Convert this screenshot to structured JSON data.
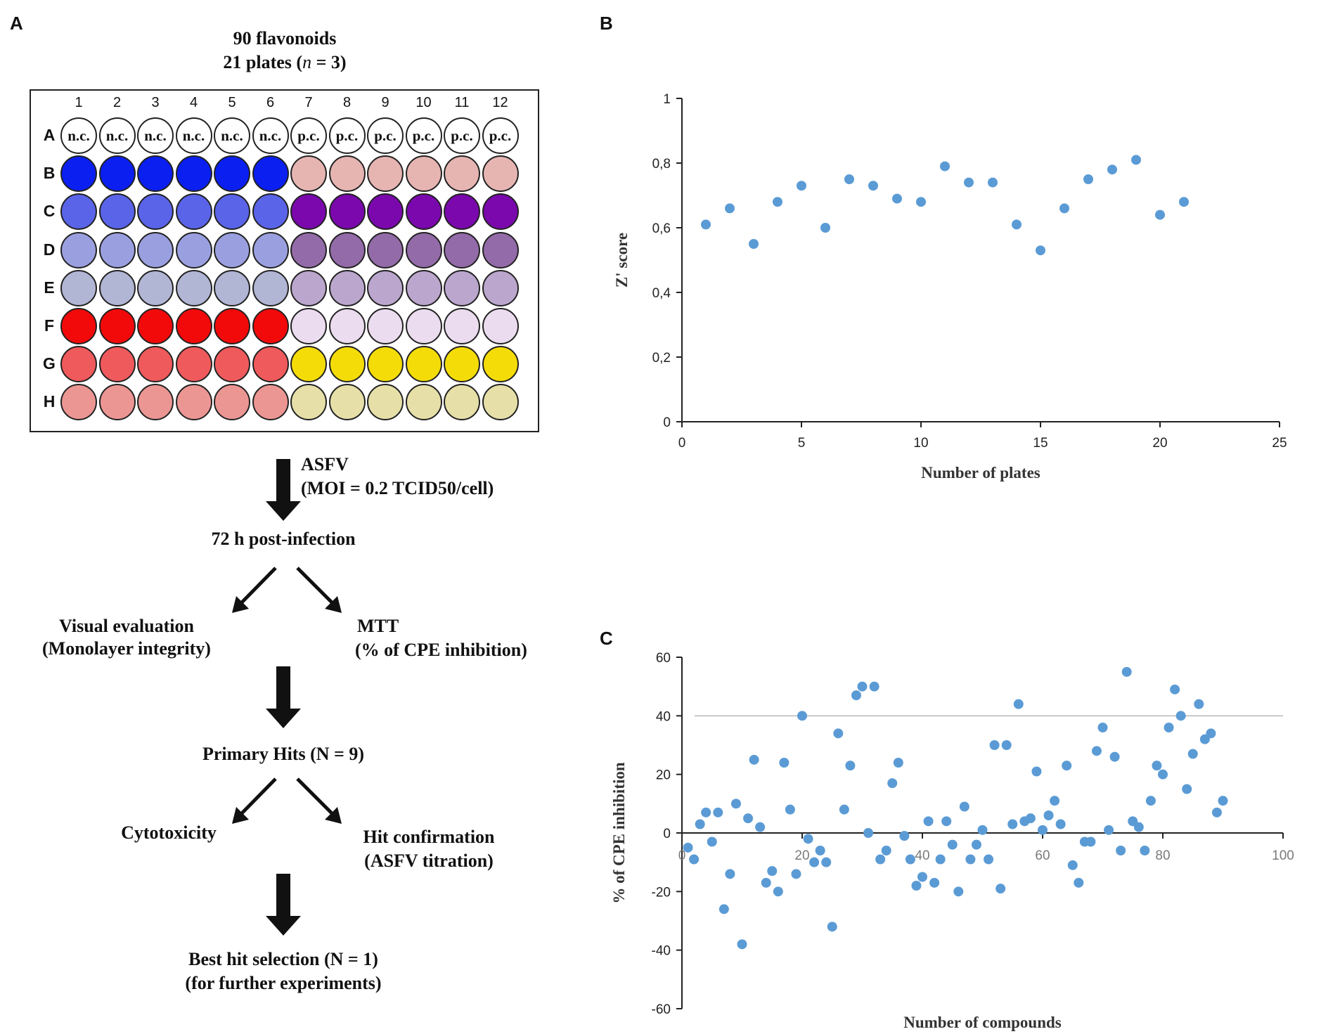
{
  "panel_letters": {
    "a": "A",
    "b": "B",
    "c": "C"
  },
  "panel_a": {
    "header_line1": "90 flavonoids",
    "header_line2_pre": "21 plates (",
    "header_line2_n": "n",
    "header_line2_post": " = 3)",
    "columns": [
      "1",
      "2",
      "3",
      "4",
      "5",
      "6",
      "7",
      "8",
      "9",
      "10",
      "11",
      "12"
    ],
    "rows": [
      {
        "label": "A",
        "colors": [
          "#ffffff",
          "#ffffff",
          "#ffffff",
          "#ffffff",
          "#ffffff",
          "#ffffff",
          "#ffffff",
          "#ffffff",
          "#ffffff",
          "#ffffff",
          "#ffffff",
          "#ffffff"
        ],
        "text": [
          "n.c.",
          "n.c.",
          "n.c.",
          "n.c.",
          "n.c.",
          "n.c.",
          "p.c.",
          "p.c.",
          "p.c.",
          "p.c.",
          "p.c.",
          "p.c."
        ]
      },
      {
        "label": "B",
        "colors": [
          "#0a1ff0",
          "#0a1ff0",
          "#0a1ff0",
          "#0a1ff0",
          "#0a1ff0",
          "#0a1ff0",
          "#e6b5b2",
          "#e6b5b2",
          "#e6b5b2",
          "#e6b5b2",
          "#e6b5b2",
          "#e6b5b2"
        ]
      },
      {
        "label": "C",
        "colors": [
          "#5a64e8",
          "#5a64e8",
          "#5a64e8",
          "#5a64e8",
          "#5a64e8",
          "#5a64e8",
          "#7a08ad",
          "#7a08ad",
          "#7a08ad",
          "#7a08ad",
          "#7a08ad",
          "#7a08ad"
        ]
      },
      {
        "label": "D",
        "colors": [
          "#9aa0df",
          "#9aa0df",
          "#9aa0df",
          "#9aa0df",
          "#9aa0df",
          "#9aa0df",
          "#936ba8",
          "#936ba8",
          "#936ba8",
          "#936ba8",
          "#936ba8",
          "#936ba8"
        ]
      },
      {
        "label": "E",
        "colors": [
          "#b2b6d5",
          "#b2b6d5",
          "#b2b6d5",
          "#b2b6d5",
          "#b2b6d5",
          "#b2b6d5",
          "#bba7cd",
          "#bba7cd",
          "#bba7cd",
          "#bba7cd",
          "#bba7cd",
          "#bba7cd"
        ]
      },
      {
        "label": "F",
        "colors": [
          "#f20a0a",
          "#f20a0a",
          "#f20a0a",
          "#f20a0a",
          "#f20a0a",
          "#f20a0a",
          "#ebdcef",
          "#ebdcef",
          "#ebdcef",
          "#ebdcef",
          "#ebdcef",
          "#ebdcef"
        ]
      },
      {
        "label": "G",
        "colors": [
          "#ef5a5c",
          "#ef5a5c",
          "#ef5a5c",
          "#ef5a5c",
          "#ef5a5c",
          "#ef5a5c",
          "#f4dc08",
          "#f4dc08",
          "#f4dc08",
          "#f4dc08",
          "#f4dc08",
          "#f4dc08"
        ]
      },
      {
        "label": "H",
        "colors": [
          "#ec9694",
          "#ec9694",
          "#ec9694",
          "#ec9694",
          "#ec9694",
          "#ec9694",
          "#e6dfa8",
          "#e6dfa8",
          "#e6dfa8",
          "#e6dfa8",
          "#e6dfa8",
          "#e6dfa8"
        ]
      }
    ],
    "asfv_label1": "ASFV",
    "asfv_label2": "(MOI = 0.2 TCID50/cell)",
    "post_infection": "72 h post-infection",
    "visual_eval1": "Visual evaluation",
    "visual_eval2": "(Monolayer integrity)",
    "mtt1": "MTT",
    "mtt2": "(% of CPE inhibition)",
    "primary_hits": "Primary Hits (N = 9)",
    "cytotoxicity": "Cytotoxicity",
    "hit_conf1": "Hit confirmation",
    "hit_conf2": "(ASFV titration)",
    "best_hit1": "Best hit selection (N = 1)",
    "best_hit2": "(for further experiments)"
  },
  "chart_data": [
    {
      "type": "scatter",
      "panel": "B",
      "title": "",
      "xlabel": "Number  of plates",
      "ylabel": "Z' score",
      "xlim": [
        0,
        25
      ],
      "ylim": [
        0,
        1
      ],
      "xticks": [
        "0",
        "5",
        "10",
        "15",
        "20",
        "25"
      ],
      "yticks": [
        "0",
        "0,2",
        "0,4",
        "0,6",
        "0,8",
        "1"
      ],
      "color": "#5b9bd5",
      "x": [
        1,
        2,
        3,
        4,
        5,
        6,
        7,
        8,
        9,
        10,
        11,
        12,
        13,
        14,
        15,
        16,
        17,
        18,
        19,
        20,
        21
      ],
      "y": [
        0.61,
        0.66,
        0.55,
        0.68,
        0.73,
        0.6,
        0.75,
        0.73,
        0.69,
        0.68,
        0.79,
        0.74,
        0.74,
        0.61,
        0.53,
        0.66,
        0.75,
        0.78,
        0.81,
        0.64,
        0.68
      ]
    },
    {
      "type": "scatter",
      "panel": "C",
      "title": "",
      "xlabel": "Number  of compounds",
      "ylabel": "% of CPE inhibition",
      "xlim": [
        0,
        100
      ],
      "ylim": [
        -60,
        60
      ],
      "xticks": [
        "0",
        "20",
        "40",
        "60",
        "80",
        "100"
      ],
      "yticks": [
        "60",
        "40",
        "20",
        "0",
        "-20",
        "-40",
        "-60"
      ],
      "threshold": 40,
      "color": "#5b9bd5",
      "x": [
        1,
        2,
        3,
        4,
        5,
        6,
        7,
        8,
        9,
        10,
        11,
        12,
        13,
        14,
        15,
        16,
        17,
        18,
        19,
        20,
        21,
        22,
        23,
        24,
        25,
        26,
        27,
        28,
        29,
        30,
        31,
        32,
        33,
        34,
        35,
        36,
        37,
        38,
        39,
        40,
        41,
        42,
        43,
        44,
        45,
        46,
        47,
        48,
        49,
        50,
        51,
        52,
        53,
        54,
        55,
        56,
        57,
        58,
        59,
        60,
        61,
        62,
        63,
        64,
        65,
        66,
        67,
        68,
        69,
        70,
        71,
        72,
        73,
        74,
        75,
        76,
        77,
        78,
        79,
        80,
        81,
        82,
        83,
        84,
        85,
        86,
        87,
        88,
        89,
        90
      ],
      "y": [
        -5,
        -9,
        3,
        7,
        -3,
        7,
        -26,
        -14,
        10,
        -38,
        5,
        25,
        2,
        -17,
        -13,
        -20,
        24,
        8,
        -14,
        40,
        -2,
        -10,
        -6,
        -10,
        -32,
        34,
        8,
        23,
        47,
        50,
        0,
        50,
        -9,
        -6,
        17,
        24,
        -1,
        -9,
        -18,
        -15,
        4,
        -17,
        -9,
        4,
        -4,
        -20,
        9,
        -9,
        -4,
        1,
        -9,
        30,
        -19,
        30,
        3,
        44,
        4,
        5,
        21,
        1,
        6,
        11,
        3,
        23,
        -11,
        -17,
        -3,
        -3,
        28,
        36,
        1,
        26,
        -6,
        55,
        4,
        2,
        -6,
        11,
        23,
        20,
        36,
        49,
        40,
        15,
        27,
        44,
        32,
        34,
        7,
        11
      ]
    }
  ]
}
